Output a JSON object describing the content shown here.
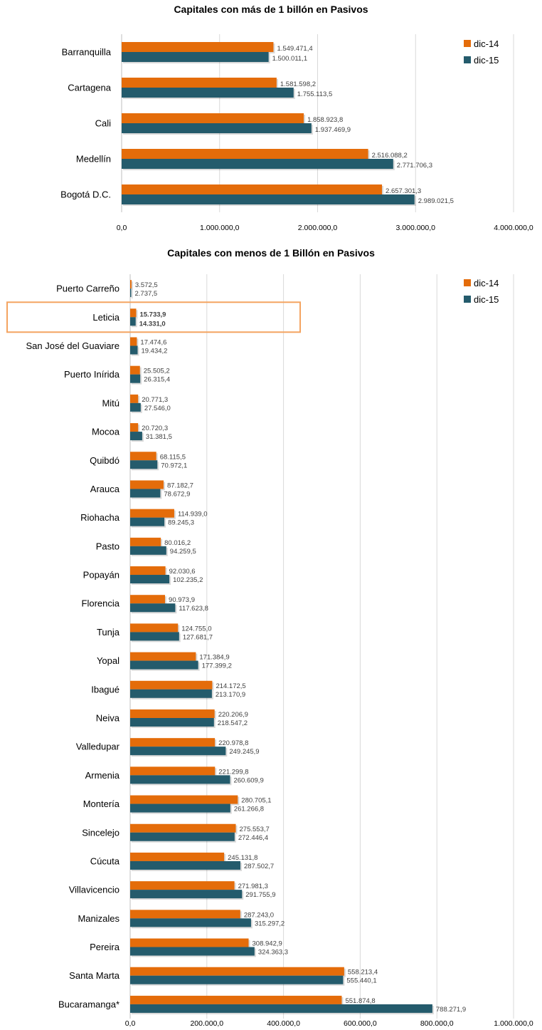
{
  "colors": {
    "dic14": "#E46C0A",
    "dic15": "#245B6C",
    "highlight": "#F4A460",
    "grid": "#D9D9D9"
  },
  "chart_data": [
    {
      "type": "bar",
      "orientation": "horizontal",
      "title": "Capitales con más de 1 billón en Pasivos",
      "categories": [
        "Barranquilla",
        "Cartagena",
        "Cali",
        "Medellín",
        "Bogotá D.C."
      ],
      "series": [
        {
          "name": "dic-14",
          "values": [
            1549471.4,
            1581598.2,
            1858923.8,
            2516088.2,
            2657301.3
          ],
          "labels": [
            "1.549.471,4",
            "1.581.598,2",
            "1.858.923,8",
            "2.516.088,2",
            "2.657.301,3"
          ]
        },
        {
          "name": "dic-15",
          "values": [
            1500011.1,
            1755113.5,
            1937469.9,
            2771706.3,
            2989021.5
          ],
          "labels": [
            "1.500.011,1",
            "1.755.113,5",
            "1.937.469,9",
            "2.771.706,3",
            "2.989.021,5"
          ]
        }
      ],
      "xlim": [
        0,
        4000000
      ],
      "ticks": [
        0,
        1000000,
        2000000,
        3000000,
        4000000
      ],
      "tick_labels": [
        "0,0",
        "1.000.000,0",
        "2.000.000,0",
        "3.000.000,0",
        "4.000.000,0"
      ],
      "grid": true,
      "legend": "top-right"
    },
    {
      "type": "bar",
      "orientation": "horizontal",
      "title": "Capitales con menos de 1 Billón en Pasivos",
      "categories": [
        "Puerto Carreño",
        "Leticia",
        "San José del Guaviare",
        "Puerto Inírida",
        "Mitú",
        "Mocoa",
        "Quibdó",
        "Arauca",
        "Riohacha",
        "Pasto",
        "Popayán",
        "Florencia",
        "Tunja",
        "Yopal",
        "Ibagué",
        "Neiva",
        "Valledupar",
        "Armenia",
        "Montería",
        "Sincelejo",
        "Cúcuta",
        "Villavicencio",
        "Manizales",
        "Pereira",
        "Santa Marta",
        "Bucaramanga*"
      ],
      "series": [
        {
          "name": "dic-14",
          "values": [
            3572.5,
            15733.9,
            17474.6,
            25505.2,
            20771.3,
            20720.3,
            68115.5,
            87182.7,
            114939.0,
            80016.2,
            92030.6,
            90973.9,
            124755.0,
            171384.9,
            214172.5,
            220206.9,
            220978.8,
            221299.8,
            280705.1,
            275553.7,
            245131.8,
            271981.3,
            287243.0,
            308942.9,
            558213.4,
            551874.8
          ],
          "labels": [
            "3.572,5",
            "15.733,9",
            "17.474,6",
            "25.505,2",
            "20.771,3",
            "20.720,3",
            "68.115,5",
            "87.182,7",
            "114.939,0",
            "80.016,2",
            "92.030,6",
            "90.973,9",
            "124.755,0",
            "171.384,9",
            "214.172,5",
            "220.206,9",
            "220.978,8",
            "221.299,8",
            "280.705,1",
            "275.553,7",
            "245.131,8",
            "271.981,3",
            "287.243,0",
            "308.942,9",
            "558.213,4",
            "551.874,8"
          ]
        },
        {
          "name": "dic-15",
          "values": [
            2737.5,
            14331.0,
            19434.2,
            26315.4,
            27546.0,
            31381.5,
            70972.1,
            78672.9,
            89245.3,
            94259.5,
            102235.2,
            117623.8,
            127681.7,
            177399.2,
            213170.9,
            218547.2,
            249245.9,
            260609.9,
            261266.8,
            272446.4,
            287502.7,
            291755.9,
            315297.2,
            324363.3,
            555440.1,
            788271.9
          ],
          "labels": [
            "2.737,5",
            "14.331,0",
            "19.434,2",
            "26.315,4",
            "27.546,0",
            "31.381,5",
            "70.972,1",
            "78.672,9",
            "89.245,3",
            "94.259,5",
            "102.235,2",
            "117.623,8",
            "127.681,7",
            "177.399,2",
            "213.170,9",
            "218.547,2",
            "249.245,9",
            "260.609,9",
            "261.266,8",
            "272.446,4",
            "287.502,7",
            "291.755,9",
            "315.297,2",
            "324.363,3",
            "555.440,1",
            "788.271,9"
          ]
        }
      ],
      "highlight_category": "Leticia",
      "xlim": [
        0,
        1000000
      ],
      "ticks": [
        0,
        200000,
        400000,
        600000,
        800000,
        1000000
      ],
      "tick_labels": [
        "0,0",
        "200.000,0",
        "400.000,0",
        "600.000,0",
        "800.000,0",
        "1.000.000,0"
      ],
      "grid": true,
      "legend": "top-right"
    }
  ]
}
